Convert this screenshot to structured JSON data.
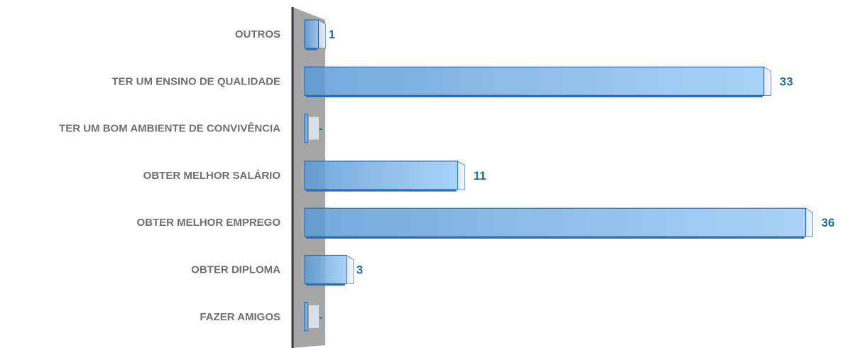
{
  "chart_data": {
    "type": "bar",
    "orientation": "horizontal",
    "categories": [
      "OUTROS",
      "TER UM ENSINO DE QUALIDADE",
      "TER UM BOM AMBIENTE DE CONVIVÊNCIA",
      "OBTER MELHOR SALÁRIO",
      "OBTER MELHOR EMPREGO",
      "OBTER DIPLOMA",
      "FAZER AMIGOS"
    ],
    "values": [
      1,
      33,
      0,
      11,
      36,
      3,
      0
    ],
    "data_labels": [
      "1",
      "33",
      "-",
      "11",
      "36",
      "3",
      "-"
    ],
    "xlim": [
      0,
      36
    ],
    "grid": false,
    "legend": "none",
    "title": "",
    "xlabel": "",
    "ylabel": "",
    "colors": {
      "bar": "#5b9bd5",
      "bar_light": "#9ccaf5",
      "bar_edge": "#2e6fb3",
      "wall": "#a6a6a6",
      "axis": "#3a3a3a",
      "category_text": "#6f6f6f",
      "value_text": "#1f6e96"
    }
  }
}
